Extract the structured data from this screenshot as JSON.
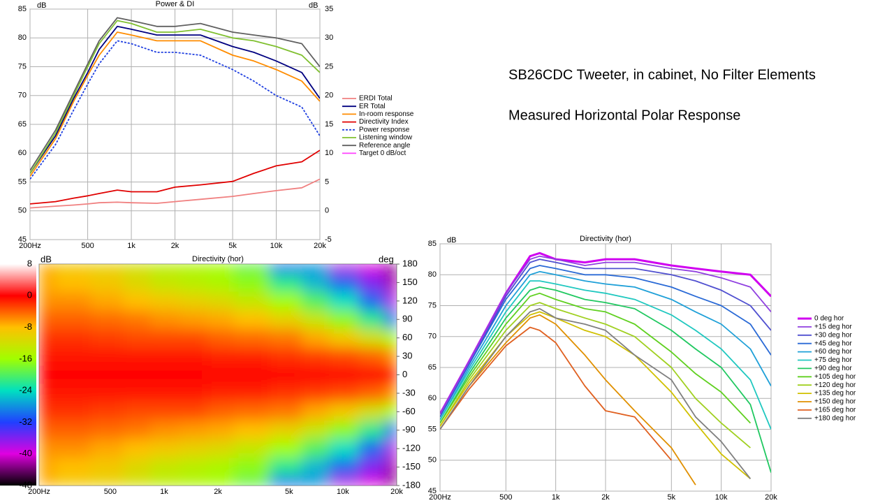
{
  "slide": {
    "title": "SB26CDC Tweeter, in cabinet, No Filter Elements",
    "subtitle": "Measured Horizontal Polar Response"
  },
  "chart_data": [
    {
      "type": "line",
      "title": "Power & DI",
      "y_unit": "dB",
      "y2_unit": "dB",
      "xscale": "log",
      "grid": true,
      "xlim": [
        200,
        20000
      ],
      "xticks": [
        {
          "value": 200,
          "label": "200Hz"
        },
        {
          "value": 500,
          "label": "500"
        },
        {
          "value": 1000,
          "label": "1k"
        },
        {
          "value": 2000,
          "label": "2k"
        },
        {
          "value": 5000,
          "label": "5k"
        },
        {
          "value": 10000,
          "label": "10k"
        },
        {
          "value": 20000,
          "label": "20k"
        }
      ],
      "ylim": [
        45,
        85
      ],
      "yticks": [
        45,
        50,
        55,
        60,
        65,
        70,
        75,
        80,
        85
      ],
      "y2lim": [
        -5,
        35
      ],
      "y2ticks": [
        -5,
        0,
        5,
        10,
        15,
        20,
        25,
        30,
        35
      ],
      "x": [
        200,
        300,
        400,
        500,
        600,
        800,
        1000,
        1500,
        2000,
        3000,
        5000,
        7000,
        10000,
        15000,
        20000
      ],
      "series": [
        {
          "name": "ERDI Total",
          "color": "#f08080",
          "axis": "y2",
          "values": [
            0.5,
            0.8,
            1.0,
            1.2,
            1.4,
            1.5,
            1.4,
            1.3,
            1.6,
            2.0,
            2.5,
            3.0,
            3.5,
            4.0,
            5.5
          ]
        },
        {
          "name": "ER Total",
          "color": "#000080",
          "values": [
            56.5,
            63,
            69.5,
            74,
            78,
            82,
            81.5,
            80.5,
            80.5,
            80.5,
            78.5,
            77.5,
            76,
            74,
            69.5
          ]
        },
        {
          "name": "In-room response",
          "color": "#ff8c00",
          "values": [
            56,
            62.5,
            69,
            73.5,
            77,
            81,
            80.5,
            79.5,
            79.5,
            79.5,
            77,
            76,
            74.5,
            72.5,
            69
          ]
        },
        {
          "name": "Directivity Index",
          "color": "#e00000",
          "axis": "y2",
          "values": [
            1.2,
            1.6,
            2.2,
            2.6,
            3.0,
            3.6,
            3.3,
            3.3,
            4.1,
            4.5,
            5.1,
            6.5,
            7.8,
            8.5,
            10.5
          ]
        },
        {
          "name": "Power response",
          "color": "#2040e0",
          "style": "dashed",
          "values": [
            55.5,
            61.5,
            67.5,
            72,
            75.5,
            79.5,
            79,
            77.5,
            77.5,
            77,
            74.5,
            72.5,
            70,
            68,
            63
          ]
        },
        {
          "name": "Listening window",
          "color": "#80c030",
          "values": [
            56.5,
            63.5,
            70,
            75,
            79,
            83,
            82.5,
            81,
            81,
            81.5,
            80,
            79.5,
            78.5,
            77,
            74
          ]
        },
        {
          "name": "Reference angle",
          "color": "#606060",
          "values": [
            57,
            64,
            70.5,
            75.5,
            79.5,
            83.5,
            83,
            82,
            82,
            82.5,
            81,
            80.5,
            80,
            79,
            75
          ]
        },
        {
          "name": "Target 0 dB/oct",
          "color": "#ff40ff",
          "values": [
            null,
            null,
            null,
            null,
            null,
            null,
            null,
            null,
            null,
            null,
            null,
            null,
            null,
            null,
            null
          ]
        }
      ]
    },
    {
      "type": "heatmap",
      "title": "Directivity (hor)",
      "z_unit": "dB",
      "y_unit": "deg",
      "xscale": "log",
      "xlim": [
        200,
        20000
      ],
      "xticks": [
        {
          "value": 200,
          "label": "200Hz"
        },
        {
          "value": 500,
          "label": "500"
        },
        {
          "value": 1000,
          "label": "1k"
        },
        {
          "value": 2000,
          "label": "2k"
        },
        {
          "value": 5000,
          "label": "5k"
        },
        {
          "value": 10000,
          "label": "10k"
        },
        {
          "value": 20000,
          "label": "20k"
        }
      ],
      "ylim": [
        -180,
        180
      ],
      "yticks": [
        180,
        150,
        120,
        90,
        60,
        30,
        0,
        -30,
        -60,
        -90,
        -120,
        -150,
        -180
      ],
      "clim": [
        -48,
        8
      ],
      "cticks": [
        8,
        0,
        -8,
        -16,
        -24,
        -32,
        -40,
        -48
      ],
      "colorscale": [
        [
          8,
          "#ffffff"
        ],
        [
          0,
          "#ff0000"
        ],
        [
          -8,
          "#ffc000"
        ],
        [
          -16,
          "#a0ff00"
        ],
        [
          -24,
          "#00e0c0"
        ],
        [
          -32,
          "#2040ff"
        ],
        [
          -40,
          "#e000e0"
        ],
        [
          -48,
          "#000000"
        ]
      ],
      "x": [
        200,
        300,
        500,
        700,
        1000,
        1500,
        2000,
        3000,
        5000,
        7000,
        10000,
        15000,
        20000
      ],
      "y": [
        180,
        150,
        120,
        90,
        60,
        30,
        0,
        -30,
        -60,
        -90,
        -120,
        -150,
        -180
      ],
      "z": [
        [
          -7,
          -9,
          -10,
          -12,
          -14,
          -15,
          -16,
          -19,
          -30,
          -28,
          -38,
          -40,
          -44
        ],
        [
          -7,
          -8,
          -9,
          -11,
          -13,
          -14,
          -15,
          -17,
          -22,
          -26,
          -30,
          -36,
          -42
        ],
        [
          -6,
          -6,
          -7,
          -8,
          -9,
          -10,
          -11,
          -13,
          -16,
          -20,
          -24,
          -30,
          -38
        ],
        [
          -4,
          -4,
          -4.5,
          -5,
          -6,
          -6.5,
          -7,
          -8,
          -10,
          -13,
          -17,
          -22,
          -30
        ],
        [
          -2,
          -2,
          -2.5,
          -3,
          -3,
          -3,
          -4,
          -4.5,
          -5,
          -7,
          -9,
          -12,
          -16
        ],
        [
          -1,
          -1,
          -1,
          -1,
          -1,
          -1,
          -1.5,
          -1.5,
          -2,
          -2.5,
          -3,
          -4,
          -6
        ],
        [
          0,
          0,
          0,
          0,
          0,
          0,
          0,
          0,
          0,
          0,
          0,
          0,
          0
        ],
        [
          -1,
          -1,
          -1,
          -1,
          -1,
          -1,
          -1.5,
          -1.5,
          -2,
          -2.5,
          -3,
          -4,
          -6
        ],
        [
          -2,
          -2,
          -2.5,
          -3,
          -3,
          -3,
          -4,
          -4.5,
          -5,
          -7,
          -9,
          -12,
          -16
        ],
        [
          -4,
          -4,
          -4.5,
          -5,
          -6,
          -6.5,
          -7,
          -8,
          -10,
          -13,
          -17,
          -22,
          -30
        ],
        [
          -6,
          -6,
          -7,
          -8,
          -9,
          -10,
          -11,
          -13,
          -16,
          -20,
          -24,
          -30,
          -38
        ],
        [
          -7,
          -8,
          -9,
          -11,
          -13,
          -14,
          -15,
          -17,
          -22,
          -26,
          -30,
          -36,
          -42
        ],
        [
          -7,
          -9,
          -10,
          -12,
          -14,
          -15,
          -16,
          -19,
          -30,
          -28,
          -38,
          -40,
          -44
        ]
      ]
    },
    {
      "type": "line",
      "title": "Directivity (hor)",
      "y_unit": "dB",
      "xscale": "log",
      "grid": true,
      "xlim": [
        200,
        20000
      ],
      "xticks": [
        {
          "value": 200,
          "label": "200Hz"
        },
        {
          "value": 500,
          "label": "500"
        },
        {
          "value": 1000,
          "label": "1k"
        },
        {
          "value": 2000,
          "label": "2k"
        },
        {
          "value": 5000,
          "label": "5k"
        },
        {
          "value": 10000,
          "label": "10k"
        },
        {
          "value": 20000,
          "label": "20k"
        }
      ],
      "ylim": [
        45,
        85
      ],
      "yticks": [
        45,
        50,
        55,
        60,
        65,
        70,
        75,
        80,
        85
      ],
      "x": [
        200,
        300,
        500,
        700,
        800,
        1000,
        1500,
        2000,
        3000,
        5000,
        7000,
        10000,
        15000,
        20000
      ],
      "series": [
        {
          "name": "0 deg hor",
          "color": "#d000f0",
          "linewidth": 3,
          "values": [
            57.5,
            66,
            77,
            83,
            83.5,
            82.5,
            82,
            82.5,
            82.5,
            81.5,
            81,
            80.5,
            80,
            76.5
          ]
        },
        {
          "name": "+15 deg hor",
          "color": "#9040e0",
          "values": [
            57.5,
            66,
            77,
            82.5,
            83,
            82.5,
            81.5,
            82,
            82,
            81,
            80.5,
            79.5,
            78,
            74
          ]
        },
        {
          "name": "+30 deg hor",
          "color": "#5050d0",
          "values": [
            57,
            65.5,
            76.5,
            82,
            82.5,
            82,
            81,
            81,
            81,
            80,
            79,
            77.5,
            75,
            71
          ]
        },
        {
          "name": "+45 deg hor",
          "color": "#2a6ad6",
          "values": [
            57,
            65.5,
            76,
            81,
            81.5,
            81,
            80,
            80,
            79.5,
            78,
            76.5,
            75,
            72,
            67
          ]
        },
        {
          "name": "+60 deg hor",
          "color": "#1fa0d8",
          "values": [
            56.5,
            65,
            75,
            80,
            80.5,
            80,
            79,
            78.5,
            78,
            76,
            74,
            72,
            68,
            62
          ]
        },
        {
          "name": "+75 deg hor",
          "color": "#20c8c0",
          "values": [
            56.5,
            64.5,
            74,
            79,
            79,
            78.5,
            77.5,
            77,
            76,
            73.5,
            71,
            68,
            63,
            55
          ]
        },
        {
          "name": "+90 deg hor",
          "color": "#20c860",
          "values": [
            56,
            64,
            73,
            77.5,
            78,
            77.5,
            76,
            75.5,
            74.5,
            71,
            68,
            65,
            59,
            48
          ]
        },
        {
          "name": "+105 deg hor",
          "color": "#60d020",
          "values": [
            56,
            63.5,
            72,
            76.5,
            77,
            76,
            74.5,
            74,
            72,
            67.5,
            64,
            61,
            56,
            null
          ]
        },
        {
          "name": "+120 deg hor",
          "color": "#a0d020",
          "values": [
            55.5,
            63,
            71,
            75,
            75.5,
            74.5,
            73,
            72,
            70,
            65,
            60,
            56,
            52,
            null
          ]
        },
        {
          "name": "+135 deg hor",
          "color": "#d0c000",
          "values": [
            55.5,
            62.5,
            70,
            73.5,
            74,
            73,
            71,
            70,
            67,
            61,
            56,
            51,
            47,
            null
          ]
        },
        {
          "name": "+150 deg hor",
          "color": "#e09000",
          "values": [
            55,
            62,
            69,
            73,
            73.5,
            72,
            67,
            63,
            58,
            52,
            46,
            null,
            null,
            null
          ]
        },
        {
          "name": "+165 deg hor",
          "color": "#e06020",
          "values": [
            55,
            61.5,
            68.5,
            71.5,
            71,
            69,
            62,
            58,
            57,
            50,
            null,
            null,
            null,
            null
          ]
        },
        {
          "name": "+180 deg hor",
          "color": "#808080",
          "values": [
            55,
            62,
            70,
            74,
            74.5,
            73,
            72,
            71,
            67,
            63,
            57,
            53,
            47,
            null
          ]
        }
      ]
    }
  ]
}
